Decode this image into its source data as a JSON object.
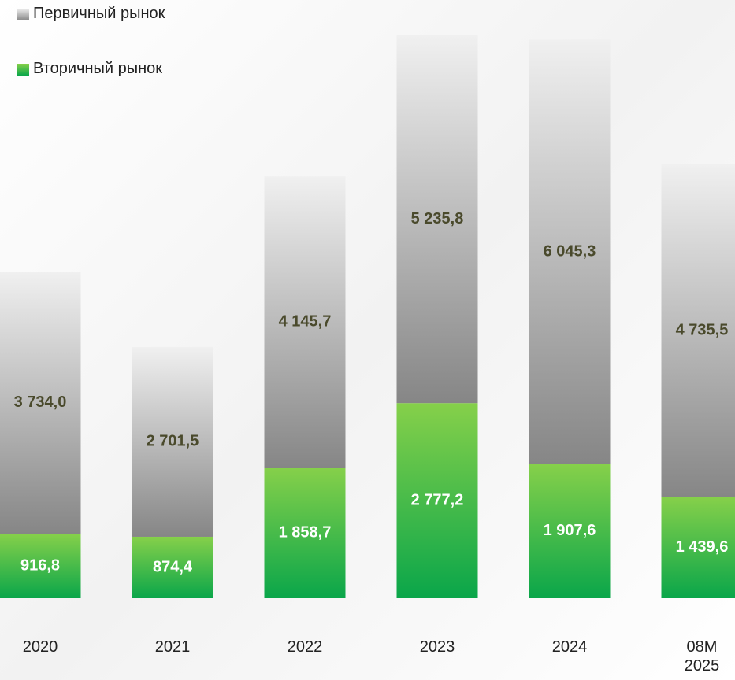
{
  "chart_data": {
    "type": "stacked_bar",
    "categories": [
      "2020",
      "2021",
      "2022",
      "2023",
      "2024",
      "08M 2025"
    ],
    "series": [
      {
        "name": "Вторичный рынок",
        "color": "#0aa64a",
        "values": [
          916.8,
          874.4,
          1858.7,
          2777.2,
          1907.6,
          1439.6
        ],
        "value_labels": [
          "916,8",
          "874,4",
          "1 858,7",
          "2 777,2",
          "1 907,6",
          "1 439,6"
        ]
      },
      {
        "name": "Первичный рынок",
        "color": "#868686",
        "values": [
          3734.0,
          2701.5,
          4145.7,
          5235.8,
          6045.3,
          4735.5
        ],
        "value_labels": [
          "3 734,0",
          "2 701,5",
          "4 145,7",
          "5 235,8",
          "6 045,3",
          "4 735,5"
        ]
      }
    ]
  }
}
